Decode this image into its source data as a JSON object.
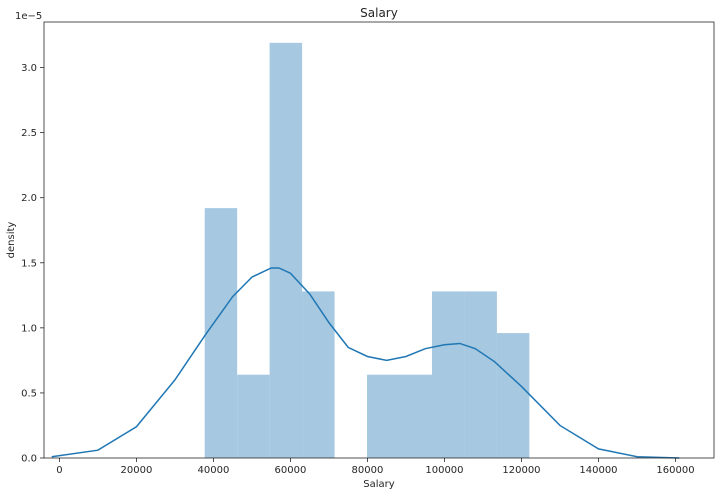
{
  "chart_data": {
    "type": "bar",
    "title": "Salary",
    "xlabel": "Salary",
    "ylabel": "density",
    "offset_label": "1e−5",
    "xlim": [
      -4000,
      170000
    ],
    "ylim": [
      0,
      3.35
    ],
    "y_scale_exponent": -5,
    "grid": false,
    "histogram": {
      "color": "#a6c8e0",
      "bins": [
        {
          "x0": 37731,
          "x1": 46163,
          "density": 1.92
        },
        {
          "x0": 46163,
          "x1": 54595,
          "density": 0.64
        },
        {
          "x0": 54595,
          "x1": 63027,
          "density": 3.19
        },
        {
          "x0": 63027,
          "x1": 71459,
          "density": 1.28
        },
        {
          "x0": 71459,
          "x1": 79891,
          "density": 0.0
        },
        {
          "x0": 79891,
          "x1": 88323,
          "density": 0.64
        },
        {
          "x0": 88323,
          "x1": 96755,
          "density": 0.64
        },
        {
          "x0": 96755,
          "x1": 105187,
          "density": 1.28
        },
        {
          "x0": 105187,
          "x1": 113619,
          "density": 1.28
        },
        {
          "x0": 113619,
          "x1": 122051,
          "density": 0.96
        }
      ]
    },
    "kde": {
      "color": "#1f77b4",
      "x": [
        -2000,
        10000,
        20000,
        30000,
        38000,
        45000,
        50000,
        55000,
        57000,
        60000,
        65000,
        70000,
        75000,
        80000,
        85000,
        90000,
        95000,
        100000,
        104000,
        108000,
        113000,
        120000,
        130000,
        140000,
        150000,
        161000
      ],
      "y": [
        0.01,
        0.06,
        0.24,
        0.6,
        0.95,
        1.24,
        1.39,
        1.46,
        1.46,
        1.42,
        1.26,
        1.04,
        0.85,
        0.78,
        0.75,
        0.78,
        0.84,
        0.87,
        0.88,
        0.84,
        0.74,
        0.55,
        0.25,
        0.07,
        0.01,
        0.0
      ]
    },
    "x_ticks": [
      0,
      20000,
      40000,
      60000,
      80000,
      100000,
      120000,
      140000,
      160000
    ],
    "y_ticks": [
      0.0,
      0.5,
      1.0,
      1.5,
      2.0,
      2.5,
      3.0
    ],
    "y_tick_labels": [
      "0.0",
      "0.5",
      "1.0",
      "1.5",
      "2.0",
      "2.5",
      "3.0"
    ]
  }
}
